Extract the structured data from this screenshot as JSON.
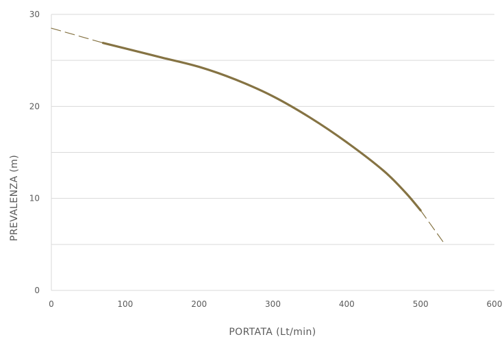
{
  "chart_data": {
    "type": "line",
    "title": "",
    "xlabel": "PORTATA (Lt/min)",
    "ylabel": "PREVALENZA (m)",
    "xlim": [
      0,
      600
    ],
    "ylim": [
      0,
      30
    ],
    "x_ticks": [
      "0",
      "100",
      "200",
      "300",
      "400",
      "500",
      "600"
    ],
    "y_ticks": [
      "0",
      "10",
      "20",
      "30"
    ],
    "y_gridlines": [
      5,
      10,
      15,
      20,
      25,
      30
    ],
    "grid": true,
    "legend": "none",
    "series": [
      {
        "style": "solid",
        "color": "#857343",
        "points": [
          [
            70,
            26.9
          ],
          [
            100,
            26.3
          ],
          [
            150,
            25.3
          ],
          [
            200,
            24.3
          ],
          [
            250,
            22.9
          ],
          [
            300,
            21.1
          ],
          [
            350,
            18.8
          ],
          [
            400,
            16.1
          ],
          [
            450,
            13.0
          ],
          [
            480,
            10.6
          ],
          [
            500,
            8.7
          ]
        ]
      },
      {
        "style": "dashed",
        "color": "#857343",
        "points": [
          [
            0,
            28.5
          ],
          [
            70,
            26.9
          ]
        ]
      },
      {
        "style": "dashed",
        "color": "#857343",
        "points": [
          [
            500,
            8.7
          ],
          [
            533,
            5.0
          ]
        ]
      }
    ]
  }
}
